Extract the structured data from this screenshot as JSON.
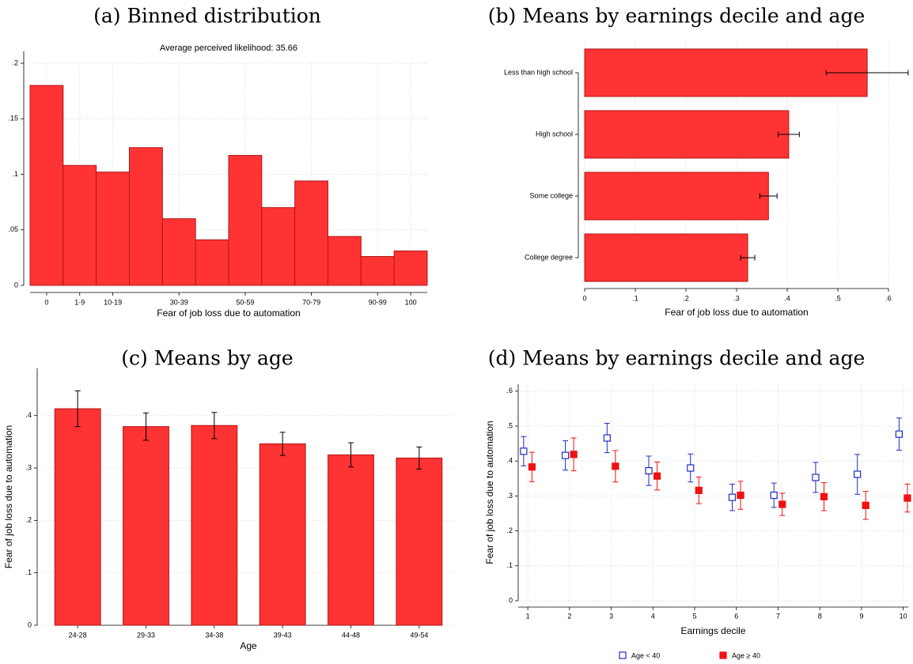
{
  "chart_data": [
    {
      "type": "bar",
      "title": "(a) Binned distribution",
      "subtitle": "Average perceived likelihood: 35.66",
      "xlabel": "Fear of job loss due to automation",
      "categories": [
        "0",
        "1-9",
        "10-19",
        null,
        "30-39",
        null,
        "50-59",
        null,
        "70-79",
        null,
        "90-99",
        "100"
      ],
      "values": [
        0.18,
        0.108,
        0.102,
        0.124,
        0.06,
        0.041,
        0.117,
        0.07,
        0.094,
        0.044,
        0.026,
        0.031
      ],
      "color": "#ff3333",
      "ylim": [
        0,
        0.2
      ],
      "yticks": [
        0,
        {
          "value": 0.05,
          "label": ".05"
        },
        {
          "value": 0.1,
          "label": ".1"
        },
        {
          "value": 0.15,
          "label": ".15"
        },
        {
          "value": 0.2,
          "label": ".2"
        }
      ],
      "grid": true
    },
    {
      "type": "bar",
      "orientation": "horizontal",
      "title": "(b) Means by earnings decile and age",
      "xlabel": "Fear of job loss due to automation",
      "categories": [
        "Less than high school",
        "High school",
        "Some college",
        "College degree"
      ],
      "values": [
        0.558,
        0.403,
        0.363,
        0.322
      ],
      "errors": [
        0.081,
        0.021,
        0.017,
        0.014
      ],
      "color": "#ff3333",
      "xlim": [
        0,
        0.64
      ],
      "xticks": [
        0,
        {
          "value": 0.1,
          "label": ".1"
        },
        {
          "value": 0.2,
          "label": ".2"
        },
        {
          "value": 0.3,
          "label": ".3"
        },
        {
          "value": 0.4,
          "label": ".4"
        },
        {
          "value": 0.5,
          "label": ".5"
        },
        {
          "value": 0.6,
          "label": ".6"
        }
      ],
      "grid": true
    },
    {
      "type": "bar",
      "title": "(c) Means by age",
      "xlabel": "Age",
      "ylabel": "Fear of job loss due to automation",
      "categories": [
        "24-28",
        "29-33",
        "34-38",
        "39-43",
        "44-48",
        "49-54"
      ],
      "values": [
        0.413,
        0.379,
        0.381,
        0.346,
        0.325,
        0.319
      ],
      "errors": [
        0.034,
        0.026,
        0.025,
        0.022,
        0.023,
        0.021
      ],
      "color": "#ff3333",
      "ylim": [
        0,
        0.49
      ],
      "yticks": [
        0,
        {
          "value": 0.1,
          "label": ".1"
        },
        {
          "value": 0.2,
          "label": ".2"
        },
        {
          "value": 0.3,
          "label": ".3"
        },
        {
          "value": 0.4,
          "label": ".4"
        }
      ],
      "grid": true
    },
    {
      "type": "scatter",
      "title": "(d) Means by earnings decile and age",
      "xlabel": "Earnings decile",
      "ylabel": "Fear of job loss due to automation",
      "x": [
        1,
        2,
        3,
        4,
        5,
        6,
        7,
        8,
        9,
        10
      ],
      "series": [
        {
          "name": "Age < 40",
          "color": "#1f2fbf",
          "marker": "hollow-square",
          "values": [
            0.428,
            0.416,
            0.466,
            0.372,
            0.38,
            0.296,
            0.302,
            0.353,
            0.362,
            0.477
          ],
          "errors": [
            0.042,
            0.042,
            0.042,
            0.042,
            0.04,
            0.038,
            0.035,
            0.043,
            0.057,
            0.046
          ]
        },
        {
          "name": "Age ≥ 40",
          "color": "#ee1111",
          "marker": "filled-square",
          "values": [
            0.383,
            0.419,
            0.385,
            0.357,
            0.316,
            0.302,
            0.276,
            0.298,
            0.273,
            0.294
          ],
          "errors": [
            0.042,
            0.047,
            0.045,
            0.04,
            0.038,
            0.04,
            0.032,
            0.04,
            0.04,
            0.04
          ]
        }
      ],
      "xlim": [
        0.77,
        10.12
      ],
      "ylim": [
        0,
        0.62
      ],
      "xticks": [
        1,
        2,
        3,
        4,
        5,
        6,
        7,
        8,
        9,
        10
      ],
      "yticks": [
        0,
        {
          "value": 0.1,
          "label": ".1"
        },
        {
          "value": 0.2,
          "label": ".2"
        },
        {
          "value": 0.3,
          "label": ".3"
        },
        {
          "value": 0.4,
          "label": ".4"
        },
        {
          "value": 0.5,
          "label": ".5"
        },
        {
          "value": 0.6,
          "label": ".6"
        }
      ],
      "grid": true,
      "legend": "bottom"
    }
  ]
}
